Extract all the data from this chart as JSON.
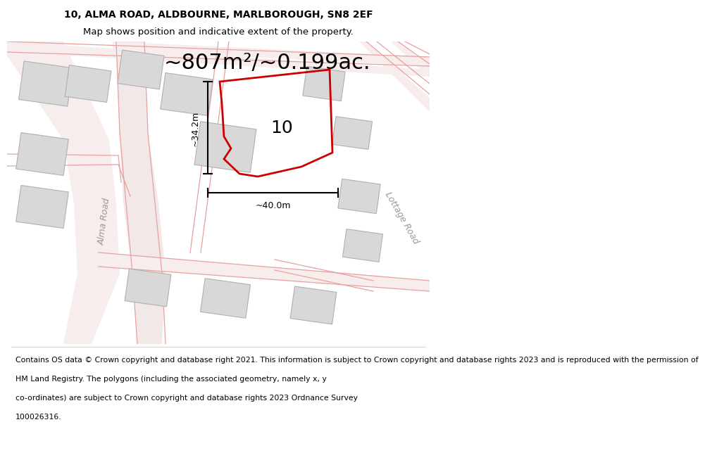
{
  "title_line1": "10, ALMA ROAD, ALDBOURNE, MARLBOROUGH, SN8 2EF",
  "title_line2": "Map shows position and indicative extent of the property.",
  "area_label": "~807m²/~0.199ac.",
  "property_number": "10",
  "dim_height": "~34.2m",
  "dim_width": "~40.0m",
  "road_label_left": "Alma Road",
  "road_label_right": "Lottage Road",
  "footer_lines": [
    "Contains OS data © Crown copyright and database right 2021. This information is subject to Crown copyright and database rights 2023 and is reproduced with the permission of",
    "HM Land Registry. The polygons (including the associated geometry, namely x, y",
    "co-ordinates) are subject to Crown copyright and database rights 2023 Ordnance Survey",
    "100026316."
  ],
  "bg_color": "#ffffff",
  "road_fill": "#f7eded",
  "road_line_color": "#e8a0a0",
  "building_fill": "#d8d8d8",
  "building_edge": "#b0b0b0",
  "property_outline": "#cc0000",
  "dim_color": "#000000",
  "title_fontsize": 10,
  "area_fontsize": 22,
  "footer_fontsize": 7.8,
  "road_label_fontsize": 9,
  "property_label_fontsize": 18,
  "dim_fontsize": 9
}
